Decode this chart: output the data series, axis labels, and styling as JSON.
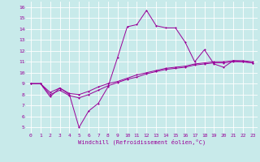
{
  "xlabel": "Windchill (Refroidissement éolien,°C)",
  "bg_color": "#c8eaea",
  "line_color": "#990099",
  "grid_color": "#ffffff",
  "xlim": [
    -0.5,
    23.5
  ],
  "ylim": [
    4.5,
    16.5
  ],
  "xticks": [
    0,
    1,
    2,
    3,
    4,
    5,
    6,
    7,
    8,
    9,
    10,
    11,
    12,
    13,
    14,
    15,
    16,
    17,
    18,
    19,
    20,
    21,
    22,
    23
  ],
  "yticks": [
    5,
    6,
    7,
    8,
    9,
    10,
    11,
    12,
    13,
    14,
    15,
    16
  ],
  "series1_x": [
    0,
    1,
    2,
    3,
    4,
    5,
    6,
    7,
    8,
    9,
    10,
    11,
    12,
    13,
    14,
    15,
    16,
    17,
    18,
    19,
    20,
    21,
    22,
    23
  ],
  "series1_y": [
    9.0,
    9.0,
    7.8,
    8.6,
    8.0,
    5.0,
    6.5,
    7.2,
    8.7,
    11.4,
    14.2,
    14.4,
    15.7,
    14.3,
    14.1,
    14.1,
    12.8,
    11.0,
    12.1,
    10.8,
    10.5,
    11.1,
    11.0,
    10.9
  ],
  "series2_x": [
    0,
    1,
    2,
    3,
    4,
    5,
    6,
    7,
    8,
    9,
    10,
    11,
    12,
    13,
    14,
    15,
    16,
    17,
    18,
    19,
    20,
    21,
    22,
    23
  ],
  "series2_y": [
    9.0,
    9.0,
    8.2,
    8.6,
    8.1,
    8.0,
    8.3,
    8.7,
    9.0,
    9.2,
    9.5,
    9.8,
    10.0,
    10.2,
    10.4,
    10.5,
    10.6,
    10.8,
    10.9,
    11.0,
    11.0,
    11.1,
    11.1,
    11.0
  ],
  "series3_x": [
    0,
    1,
    2,
    3,
    4,
    5,
    6,
    7,
    8,
    9,
    10,
    11,
    12,
    13,
    14,
    15,
    16,
    17,
    18,
    19,
    20,
    21,
    22,
    23
  ],
  "series3_y": [
    9.0,
    9.0,
    8.0,
    8.4,
    7.9,
    7.7,
    8.0,
    8.4,
    8.8,
    9.1,
    9.4,
    9.6,
    9.9,
    10.1,
    10.3,
    10.4,
    10.5,
    10.7,
    10.8,
    10.9,
    10.9,
    11.0,
    11.0,
    10.9
  ],
  "xlabel_fontsize": 5.0,
  "tick_fontsize": 4.5,
  "lw": 0.7,
  "ms": 2.0
}
